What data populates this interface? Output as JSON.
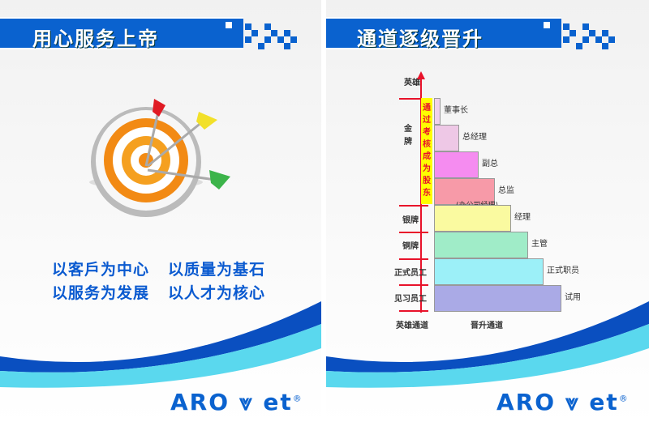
{
  "left_poster": {
    "title": "用心服务上帝",
    "slogans": [
      "以客戶为中心",
      "以质量为基石",
      "以服务为发展",
      "以人才为核心"
    ],
    "logo": {
      "text": "ARO",
      "text2": "et",
      "mark": "®"
    },
    "illustration": "target-with-arrows-icon"
  },
  "right_poster": {
    "title": "通道逐级晋升",
    "axis_top": "英雄",
    "left_levels": [
      "金牌",
      "银牌",
      "铜牌",
      "正式员工",
      "见习员工"
    ],
    "shareholder_note": "通过考核成为股东",
    "steps": [
      {
        "label": "董事长",
        "color": "#f0d0ec"
      },
      {
        "label": "总经理",
        "color": "#eec8e6"
      },
      {
        "label": "副总",
        "color": "#f58cf0"
      },
      {
        "label": "总监",
        "color": "#f79aa8",
        "sub": "(办公司经理)"
      },
      {
        "label": "经理",
        "color": "#fafaa0"
      },
      {
        "label": "主管",
        "color": "#a0ecc8"
      },
      {
        "label": "正式职员",
        "color": "#9cf0f8"
      },
      {
        "label": "试用",
        "color": "#aaaae6"
      }
    ],
    "bottom_left": "英雄通道",
    "bottom_right": "晋升通道",
    "logo": {
      "text": "ARO",
      "text2": "et",
      "mark": "®"
    }
  },
  "colors": {
    "brand_blue": "#0a62cf",
    "accent_red": "#e8122a",
    "note_yellow": "#ffff00"
  }
}
